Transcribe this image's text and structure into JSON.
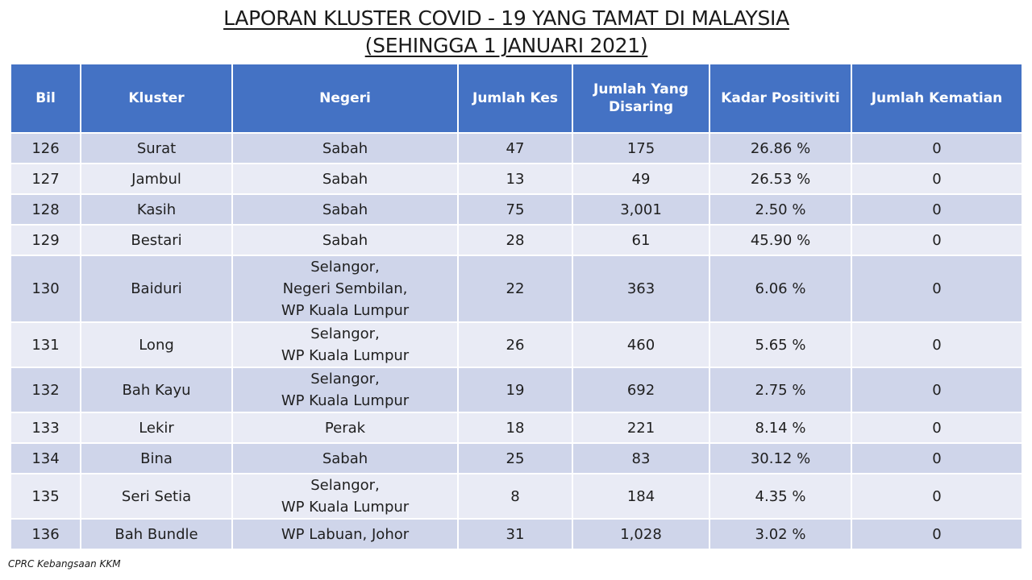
{
  "title": {
    "line1": "LAPORAN KLUSTER COVID - 19 YANG TAMAT DI MALAYSIA",
    "line2": "(SEHINGGA 1 JANUARI 2021)"
  },
  "table": {
    "headers": {
      "bil": "Bil",
      "kluster": "Kluster",
      "negeri": "Negeri",
      "jumlah_kes": "Jumlah Kes",
      "jumlah_disaring_1": "Jumlah Yang",
      "jumlah_disaring_2": "Disaring",
      "kadar_positiviti": "Kadar Positiviti",
      "jumlah_kematian": "Jumlah Kematian"
    },
    "rows": [
      {
        "bil": "126",
        "kluster": "Surat",
        "negeri": [
          "Sabah"
        ],
        "kes": "47",
        "disaring": "175",
        "positiviti": "26.86 %",
        "kematian": "0"
      },
      {
        "bil": "127",
        "kluster": "Jambul",
        "negeri": [
          "Sabah"
        ],
        "kes": "13",
        "disaring": "49",
        "positiviti": "26.53 %",
        "kematian": "0"
      },
      {
        "bil": "128",
        "kluster": "Kasih",
        "negeri": [
          "Sabah"
        ],
        "kes": "75",
        "disaring": "3,001",
        "positiviti": "2.50 %",
        "kematian": "0"
      },
      {
        "bil": "129",
        "kluster": "Bestari",
        "negeri": [
          "Sabah"
        ],
        "kes": "28",
        "disaring": "61",
        "positiviti": "45.90 %",
        "kematian": "0"
      },
      {
        "bil": "130",
        "kluster": "Baiduri",
        "negeri": [
          "Selangor,",
          "Negeri Sembilan,",
          "WP Kuala Lumpur"
        ],
        "kes": "22",
        "disaring": "363",
        "positiviti": "6.06 %",
        "kematian": "0"
      },
      {
        "bil": "131",
        "kluster": "Long",
        "negeri": [
          "Selangor,",
          "WP Kuala Lumpur"
        ],
        "kes": "26",
        "disaring": "460",
        "positiviti": "5.65 %",
        "kematian": "0"
      },
      {
        "bil": "132",
        "kluster": "Bah Kayu",
        "negeri": [
          "Selangor,",
          "WP Kuala Lumpur"
        ],
        "kes": "19",
        "disaring": "692",
        "positiviti": "2.75 %",
        "kematian": "0"
      },
      {
        "bil": "133",
        "kluster": "Lekir",
        "negeri": [
          "Perak"
        ],
        "kes": "18",
        "disaring": "221",
        "positiviti": "8.14 %",
        "kematian": "0"
      },
      {
        "bil": "134",
        "kluster": "Bina",
        "negeri": [
          "Sabah"
        ],
        "kes": "25",
        "disaring": "83",
        "positiviti": "30.12 %",
        "kematian": "0"
      },
      {
        "bil": "135",
        "kluster": "Seri Setia",
        "negeri": [
          "Selangor,",
          "WP Kuala Lumpur"
        ],
        "kes": "8",
        "disaring": "184",
        "positiviti": "4.35 %",
        "kematian": "0"
      },
      {
        "bil": "136",
        "kluster": "Bah Bundle",
        "negeri": [
          "WP Labuan, Johor"
        ],
        "kes": "31",
        "disaring": "1,028",
        "positiviti": "3.02 %",
        "kematian": "0"
      }
    ]
  },
  "footer": "CPRC Kebangsaan KKM",
  "colors": {
    "header_bg": "#4472c4",
    "row_dark": "#cfd5ea",
    "row_light": "#e9ebf5"
  }
}
